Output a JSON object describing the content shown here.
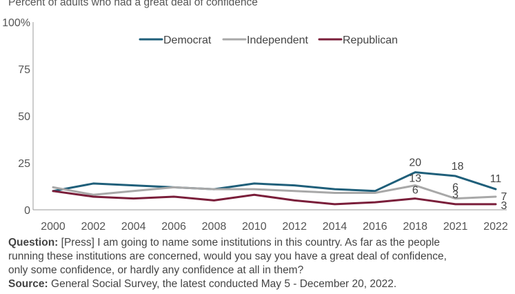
{
  "chart_data": {
    "type": "line",
    "subtitle": "Percent of adults who had a great deal of confidence",
    "x": [
      "2000",
      "2002",
      "2004",
      "2006",
      "2008",
      "2010",
      "2012",
      "2014",
      "2016",
      "2018",
      "2021",
      "2022"
    ],
    "ylim": [
      0,
      100
    ],
    "yticks": [
      "0",
      "25",
      "50",
      "75",
      "100%"
    ],
    "grid": false,
    "legend_position": "top",
    "series": [
      {
        "name": "Democrat",
        "color": "#1f5f7a",
        "values": [
          10,
          14,
          13,
          12,
          11,
          14,
          13,
          11,
          10,
          20,
          18,
          11
        ],
        "labels": {
          "9": "20",
          "10": "18",
          "11": "11"
        }
      },
      {
        "name": "Independent",
        "color": "#a8a8a8",
        "values": [
          12,
          8,
          10,
          12,
          11,
          11,
          10,
          9,
          9,
          13,
          6,
          7
        ],
        "labels": {
          "9": "13",
          "10": "6",
          "11": "7"
        }
      },
      {
        "name": "Republican",
        "color": "#7a1e3a",
        "values": [
          10,
          7,
          6,
          7,
          5,
          8,
          5,
          3,
          4,
          6,
          3,
          3
        ],
        "labels": {
          "9": "6",
          "10": "3",
          "11": "3"
        }
      }
    ]
  },
  "notes": {
    "question_label": "Question:",
    "question_line1": " [Press] I am going to name some institutions in this country. As far as the people",
    "question_line2": "running these institutions are concerned, would you say you have a great deal of confidence,",
    "question_line3": "only some confidence, or hardly any confidence at all in them?",
    "source_label": "Source:",
    "source_text": " General Social Survey, the latest conducted May 5 - December 20, 2022."
  }
}
